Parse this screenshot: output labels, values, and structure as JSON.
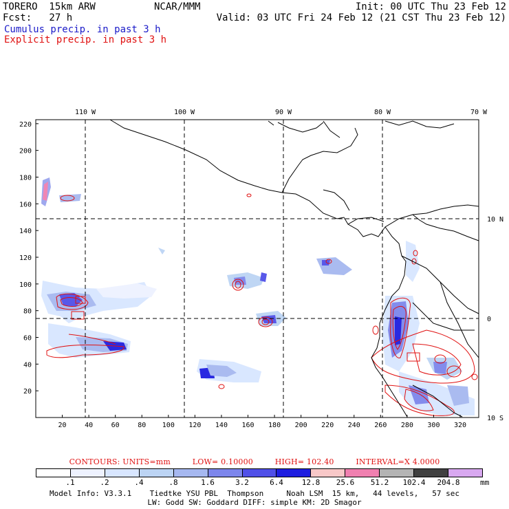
{
  "header": {
    "model_name": "TORERO  15km ARW",
    "institution": "NCAR/MMM",
    "init": "Init: 00 UTC Thu 23 Feb 12",
    "fcst": "Fcst:   27 h",
    "valid": "Valid: 03 UTC Fri 24 Feb 12 (21 CST Thu 23 Feb 12)",
    "field_blue": "Cumulus precip. in past 3 h",
    "field_red": "Explicit precip. in past 3 h"
  },
  "map": {
    "lon_labels": [
      "110 W",
      "100 W",
      "90 W",
      "80 W",
      "70 W"
    ],
    "lat_labels": [
      "10 N",
      "0",
      "10 S"
    ],
    "x_ticks": [
      "20",
      "40",
      "60",
      "80",
      "100",
      "120",
      "140",
      "160",
      "180",
      "200",
      "220",
      "240",
      "260",
      "280",
      "300",
      "320"
    ],
    "y_ticks": [
      "20",
      "40",
      "60",
      "80",
      "100",
      "120",
      "140",
      "160",
      "180",
      "200",
      "220"
    ],
    "grid_x_range": [
      0,
      334
    ],
    "grid_y_range": [
      0,
      223
    ]
  },
  "contours": {
    "title": "CONTOURS:  UNITS=mm",
    "low": "LOW= 0.10000",
    "high": "HIGH=  102.40",
    "interval": "INTERVAL=X  4.0000"
  },
  "legend": {
    "colors": [
      "#ffffff",
      "#eef2ff",
      "#d8e6ff",
      "#bcd4f4",
      "#a6b8f0",
      "#7d86ec",
      "#5050e8",
      "#1e1ee0",
      "#f8c8c8",
      "#f080b0",
      "#b4b4b4",
      "#404040",
      "#d8a8f0"
    ],
    "labels": [
      ".1",
      ".2",
      ".4",
      ".8",
      "1.6",
      "3.2",
      "6.4",
      "12.8",
      "25.6",
      "51.2",
      "102.4",
      "204.8"
    ],
    "unit": "mm"
  },
  "footer": {
    "line1": "Model Info: V3.3.1    Tiedtke YSU PBL  Thompson     Noah LSM  15 km,   44 levels,   57 sec",
    "line2": "LW: Godd SW: Goddard DIFF: simple KM: 2D Smagor"
  },
  "colors": {
    "cumulus": "#1a1ac8",
    "explicit": "#e01010",
    "coast": "#000000"
  }
}
